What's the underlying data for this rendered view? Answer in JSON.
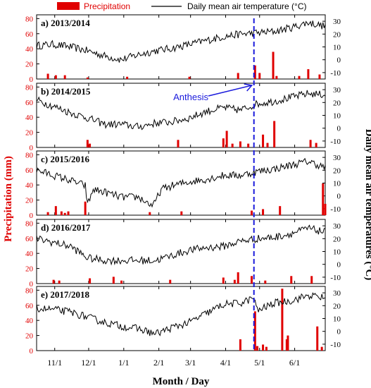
{
  "chart_data": {
    "type": "bar+line",
    "legend": {
      "precipitation": "Precipitation",
      "temperature": "Daily mean air temperature (°C)",
      "placement": "top"
    },
    "ylabel_left": "Precipitation (mm)",
    "ylabel_right": "Daily mean air temperatures (°C)",
    "xlabel": "Month / Day",
    "x_tick_labels": [
      "11/1",
      "12/1",
      "1/1",
      "2/1",
      "3/1",
      "4/1",
      "5/1",
      "6/1"
    ],
    "y_left_ticks": [
      "0",
      "20",
      "40",
      "60",
      "80"
    ],
    "y_right_ticks": [
      "-10",
      "0",
      "10",
      "20",
      "30"
    ],
    "ylim_left": [
      0,
      85
    ],
    "ylim_right": [
      -15,
      35
    ],
    "x_range_days_from_oct1": [
      15,
      270
    ],
    "x_tick_days_from_oct1": [
      31,
      61,
      92,
      123,
      151,
      182,
      212,
      243
    ],
    "anthesis": {
      "label": "Anthesis",
      "day_from_oct1": 207
    },
    "colors": {
      "precipitation": "#e00000",
      "temperature": "#000000",
      "anthesis": "#1a1adc"
    },
    "panels": [
      {
        "label": "a) 2013/2014",
        "temp_nodes": [
          [
            15,
            11
          ],
          [
            30,
            12
          ],
          [
            45,
            10
          ],
          [
            60,
            7
          ],
          [
            75,
            3
          ],
          [
            90,
            0
          ],
          [
            105,
            4
          ],
          [
            120,
            7
          ],
          [
            135,
            9
          ],
          [
            150,
            12
          ],
          [
            165,
            15
          ],
          [
            180,
            18
          ],
          [
            195,
            20
          ],
          [
            210,
            21
          ],
          [
            225,
            22
          ],
          [
            240,
            25
          ],
          [
            255,
            29
          ],
          [
            270,
            26
          ]
        ],
        "precip": [
          [
            25,
            7
          ],
          [
            32,
            5
          ],
          [
            40,
            5
          ],
          [
            60,
            2
          ],
          [
            95,
            3
          ],
          [
            150,
            3
          ],
          [
            193,
            8
          ],
          [
            208,
            18
          ],
          [
            212,
            8
          ],
          [
            224,
            36
          ],
          [
            227,
            4
          ],
          [
            247,
            4
          ],
          [
            255,
            13
          ],
          [
            265,
            6
          ]
        ]
      },
      {
        "label": "b) 2014/2015",
        "temp_nodes": [
          [
            15,
            22
          ],
          [
            30,
            17
          ],
          [
            45,
            12
          ],
          [
            60,
            8
          ],
          [
            75,
            3
          ],
          [
            90,
            3
          ],
          [
            105,
            1
          ],
          [
            120,
            4
          ],
          [
            135,
            5
          ],
          [
            150,
            8
          ],
          [
            165,
            13
          ],
          [
            180,
            16
          ],
          [
            195,
            14
          ],
          [
            210,
            19
          ],
          [
            225,
            21
          ],
          [
            240,
            24
          ],
          [
            255,
            27
          ],
          [
            270,
            26
          ]
        ],
        "precip": [
          [
            60,
            10
          ],
          [
            62,
            5
          ],
          [
            140,
            10
          ],
          [
            180,
            12
          ],
          [
            183,
            22
          ],
          [
            188,
            5
          ],
          [
            195,
            8
          ],
          [
            202,
            5
          ],
          [
            215,
            17
          ],
          [
            219,
            6
          ],
          [
            225,
            35
          ],
          [
            257,
            10
          ],
          [
            262,
            6
          ]
        ]
      },
      {
        "label": "c) 2015/2016",
        "temp_nodes": [
          [
            15,
            20
          ],
          [
            30,
            16
          ],
          [
            45,
            12
          ],
          [
            58,
            8
          ],
          [
            60,
            -7
          ],
          [
            65,
            5
          ],
          [
            75,
            3
          ],
          [
            90,
            -1
          ],
          [
            105,
            -1
          ],
          [
            118,
            -8
          ],
          [
            125,
            5
          ],
          [
            135,
            8
          ],
          [
            150,
            11
          ],
          [
            165,
            13
          ],
          [
            180,
            16
          ],
          [
            195,
            16
          ],
          [
            210,
            19
          ],
          [
            225,
            21
          ],
          [
            240,
            24
          ],
          [
            255,
            27
          ],
          [
            270,
            22
          ]
        ],
        "precip": [
          [
            25,
            4
          ],
          [
            32,
            12
          ],
          [
            37,
            5
          ],
          [
            40,
            3
          ],
          [
            43,
            5
          ],
          [
            58,
            18
          ],
          [
            115,
            4
          ],
          [
            143,
            5
          ],
          [
            205,
            6
          ],
          [
            215,
            8
          ],
          [
            230,
            12
          ],
          [
            268,
            42
          ],
          [
            270,
            15
          ]
        ]
      },
      {
        "label": "d) 2016/2017",
        "temp_nodes": [
          [
            15,
            20
          ],
          [
            30,
            17
          ],
          [
            45,
            14
          ],
          [
            60,
            5
          ],
          [
            75,
            3
          ],
          [
            90,
            3
          ],
          [
            105,
            3
          ],
          [
            120,
            3
          ],
          [
            135,
            7
          ],
          [
            150,
            11
          ],
          [
            165,
            13
          ],
          [
            180,
            14
          ],
          [
            195,
            18
          ],
          [
            210,
            20
          ],
          [
            225,
            21
          ],
          [
            240,
            24
          ],
          [
            255,
            28
          ],
          [
            270,
            25
          ]
        ],
        "precip": [
          [
            30,
            5
          ],
          [
            35,
            4
          ],
          [
            62,
            7
          ],
          [
            83,
            9
          ],
          [
            90,
            4
          ],
          [
            133,
            5
          ],
          [
            180,
            8
          ],
          [
            190,
            5
          ],
          [
            193,
            15
          ],
          [
            205,
            10
          ],
          [
            217,
            4
          ],
          [
            240,
            10
          ],
          [
            258,
            10
          ]
        ]
      },
      {
        "label": "e) 2017/2018",
        "temp_nodes": [
          [
            15,
            18
          ],
          [
            30,
            17
          ],
          [
            45,
            15
          ],
          [
            60,
            11
          ],
          [
            75,
            7
          ],
          [
            90,
            4
          ],
          [
            105,
            2
          ],
          [
            120,
            -2
          ],
          [
            135,
            3
          ],
          [
            150,
            7
          ],
          [
            165,
            14
          ],
          [
            180,
            21
          ],
          [
            195,
            22
          ],
          [
            207,
            26
          ],
          [
            210,
            16
          ],
          [
            225,
            22
          ],
          [
            240,
            24
          ],
          [
            255,
            28
          ],
          [
            270,
            26
          ]
        ],
        "precip": [
          [
            195,
            15
          ],
          [
            208,
            52
          ],
          [
            210,
            6
          ],
          [
            215,
            8
          ],
          [
            218,
            5
          ],
          [
            232,
            82
          ],
          [
            236,
            15
          ],
          [
            237,
            20
          ],
          [
            263,
            32
          ],
          [
            267,
            5
          ]
        ]
      }
    ]
  }
}
